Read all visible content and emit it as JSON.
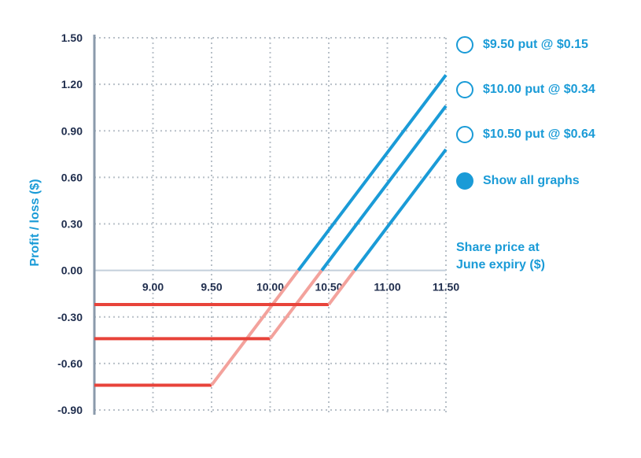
{
  "chart_data": {
    "type": "line",
    "title": "",
    "xlabel": "Share price at June expiry ($)",
    "ylabel": "Profit / loss ($)",
    "xlim": [
      8.5,
      11.5
    ],
    "ylim": [
      -0.9,
      1.5
    ],
    "grid": true,
    "x_ticks": [
      "9.00",
      "9.50",
      "10.00",
      "10.50",
      "11.00",
      "11.50"
    ],
    "y_ticks": [
      "1.50",
      "1.20",
      "0.90",
      "0.60",
      "0.30",
      "0.00",
      "-0.30",
      "-0.60",
      "-0.90"
    ],
    "series": [
      {
        "name": "$9.50 put @ $0.15",
        "points": [
          [
            8.5,
            -0.74
          ],
          [
            9.5,
            -0.74
          ],
          [
            11.5,
            1.26
          ]
        ]
      },
      {
        "name": "$10.00 put @ $0.34",
        "points": [
          [
            8.5,
            -0.44
          ],
          [
            10.0,
            -0.44
          ],
          [
            11.5,
            1.06
          ]
        ]
      },
      {
        "name": "$10.50 put @ $0.64",
        "points": [
          [
            8.5,
            -0.22
          ],
          [
            10.5,
            -0.22
          ],
          [
            11.5,
            0.78
          ]
        ]
      }
    ],
    "colors": {
      "flat_loss": "#e8433a",
      "rising_loss": "#f3a29c",
      "profit": "#1a9bd7",
      "axis": "#8a9aab",
      "grid": "#b8c0c8"
    }
  },
  "legend": {
    "options": [
      {
        "label": "$9.50 put @ $0.15",
        "selected": false
      },
      {
        "label": "$10.00 put @ $0.34",
        "selected": false
      },
      {
        "label": "$10.50 put @ $0.64",
        "selected": false
      },
      {
        "label": "Show all graphs",
        "selected": true
      }
    ]
  },
  "axis_title_x": [
    "Share price at",
    "June expiry ($)"
  ]
}
